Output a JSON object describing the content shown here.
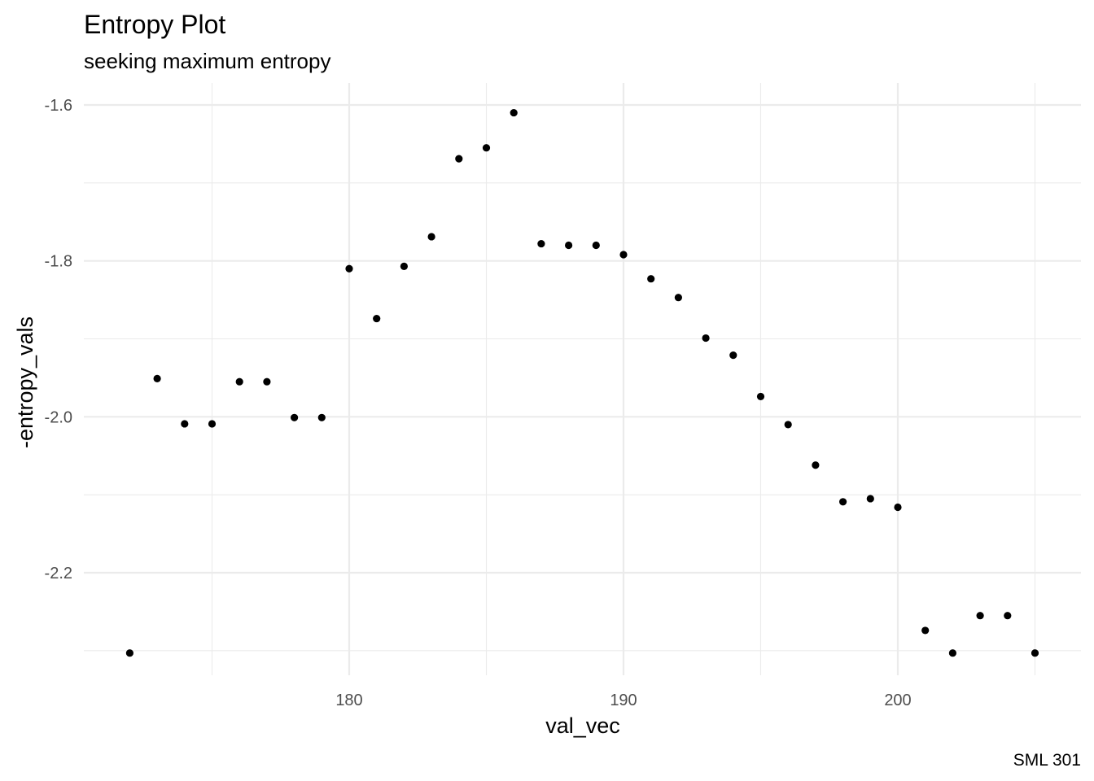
{
  "chart_data": {
    "type": "scatter",
    "title": "Entropy Plot",
    "subtitle": "seeking maximum entropy",
    "xlabel": "val_vec",
    "ylabel": "-entropy_vals",
    "caption": "SML 301",
    "xlim": [
      170.35,
      206.65
    ],
    "ylim": [
      -2.3,
      -1.6
    ],
    "x_ticks": [
      180,
      190,
      200
    ],
    "x_tick_labels": [
      "180",
      "190",
      "200"
    ],
    "x_minor": [
      175,
      185,
      195,
      205
    ],
    "y_ticks": [
      -1.6,
      -1.8,
      -2.0,
      -2.2
    ],
    "y_tick_labels": [
      "-1.6",
      "-1.8",
      "-2.0",
      "-2.2"
    ],
    "y_minor": [
      -1.7,
      -1.9,
      -2.1,
      -2.3
    ],
    "grid": true,
    "legend": "none",
    "point_color": "#000000",
    "x": [
      172,
      173,
      174,
      175,
      176,
      177,
      178,
      179,
      180,
      181,
      182,
      183,
      184,
      185,
      186,
      187,
      188,
      189,
      190,
      191,
      192,
      193,
      194,
      195,
      196,
      197,
      198,
      199,
      200,
      201,
      202,
      203,
      204,
      205
    ],
    "y": [
      -2.303,
      -1.951,
      -2.009,
      -2.009,
      -1.955,
      -1.955,
      -2.001,
      -2.001,
      -1.81,
      -1.874,
      -1.807,
      -1.769,
      -1.669,
      -1.655,
      -1.61,
      -1.778,
      -1.78,
      -1.78,
      -1.792,
      -1.823,
      -1.847,
      -1.899,
      -1.921,
      -1.974,
      -2.01,
      -2.062,
      -2.109,
      -2.105,
      -2.116,
      -2.274,
      -2.303,
      -2.255,
      -2.255,
      -2.303
    ]
  }
}
